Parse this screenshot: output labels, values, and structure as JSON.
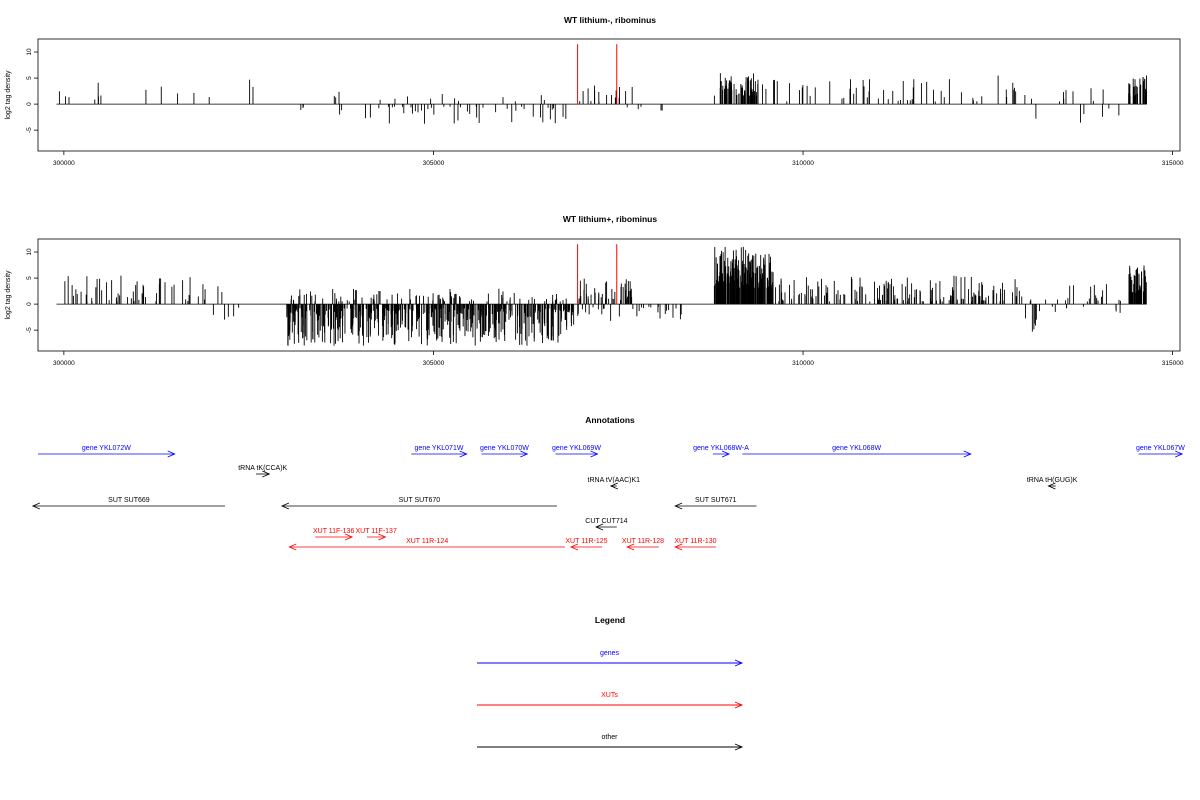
{
  "chart_data": [
    {
      "type": "bar",
      "title": "WT lithium-, ribominus",
      "xlabel": "",
      "ylabel": "log2 tag density",
      "xlim": [
        299650,
        315100
      ],
      "ylim": [
        -9,
        12.5
      ],
      "xticks": [
        300000,
        305000,
        310000,
        315000
      ],
      "yticks": [
        -5,
        0,
        5,
        10
      ],
      "grid": false,
      "seed": 1,
      "highlight_bars": [
        {
          "x": 306950,
          "y": 11.5,
          "color": "#ff0000"
        },
        {
          "x": 307480,
          "y": 11.5,
          "color": "#ff0000"
        }
      ],
      "signal_regions": [
        {
          "x0": 299900,
          "x1": 302300,
          "density": 0.012,
          "min": 0.8,
          "max": 4.2,
          "sign": 1
        },
        {
          "x0": 302500,
          "x1": 302600,
          "density": 0.05,
          "min": 2.5,
          "max": 6.3,
          "sign": 1
        },
        {
          "x0": 303200,
          "x1": 306800,
          "density": 0.035,
          "min": 0.5,
          "max": 3.8,
          "sign": -1
        },
        {
          "x0": 303600,
          "x1": 306600,
          "density": 0.012,
          "min": 0.5,
          "max": 2.5,
          "sign": 1
        },
        {
          "x0": 306950,
          "x1": 307700,
          "density": 0.06,
          "min": 0.5,
          "max": 4.5,
          "sign": 1
        },
        {
          "x0": 307000,
          "x1": 308300,
          "density": 0.01,
          "min": 0.5,
          "max": 3.5,
          "sign": -1
        },
        {
          "x0": 308800,
          "x1": 309400,
          "density": 0.3,
          "min": 1.5,
          "max": 6,
          "sign": 1
        },
        {
          "x0": 309400,
          "x1": 312900,
          "density": 0.04,
          "min": 0.5,
          "max": 4.8,
          "sign": 1
        },
        {
          "x0": 312600,
          "x1": 312650,
          "density": 0.05,
          "min": 3,
          "max": 6,
          "sign": 1
        },
        {
          "x0": 313000,
          "x1": 314300,
          "density": 0.02,
          "min": 0.5,
          "max": 3.5,
          "sign": 1
        },
        {
          "x0": 313000,
          "x1": 314300,
          "density": 0.012,
          "min": 0.5,
          "max": 3.8,
          "sign": -1
        },
        {
          "x0": 314400,
          "x1": 314650,
          "density": 0.4,
          "min": 1.5,
          "max": 5.5,
          "sign": 1
        }
      ]
    },
    {
      "type": "bar",
      "title": "WT lithium+, ribominus",
      "xlabel": "",
      "ylabel": "log2 tag density",
      "xlim": [
        299650,
        315100
      ],
      "ylim": [
        -9,
        12.5
      ],
      "xticks": [
        300000,
        305000,
        310000,
        315000
      ],
      "yticks": [
        -5,
        0,
        5,
        10
      ],
      "grid": false,
      "seed": 7,
      "highlight_bars": [
        {
          "x": 306950,
          "y": 11.5,
          "color": "#ff0000"
        },
        {
          "x": 307480,
          "y": 11.5,
          "color": "#ff0000"
        }
      ],
      "signal_regions": [
        {
          "x0": 299900,
          "x1": 302200,
          "density": 0.06,
          "min": 0.5,
          "max": 5.5,
          "sign": 1
        },
        {
          "x0": 302000,
          "x1": 302400,
          "density": 0.03,
          "min": 0.5,
          "max": 3,
          "sign": -1
        },
        {
          "x0": 303000,
          "x1": 306900,
          "density": 0.3,
          "min": 0.8,
          "max": 8,
          "sign": -1
        },
        {
          "x0": 303000,
          "x1": 306900,
          "density": 0.06,
          "min": 0.5,
          "max": 3,
          "sign": 1
        },
        {
          "x0": 306950,
          "x1": 307700,
          "density": 0.15,
          "min": 0.8,
          "max": 5,
          "sign": 1
        },
        {
          "x0": 306950,
          "x1": 308400,
          "density": 0.05,
          "min": 0.5,
          "max": 4,
          "sign": -1
        },
        {
          "x0": 308800,
          "x1": 309600,
          "density": 0.6,
          "min": 3,
          "max": 11,
          "sign": 1
        },
        {
          "x0": 309600,
          "x1": 312900,
          "density": 0.12,
          "min": 0.5,
          "max": 5.5,
          "sign": 1
        },
        {
          "x0": 312900,
          "x1": 314300,
          "density": 0.04,
          "min": 0.5,
          "max": 4,
          "sign": 1
        },
        {
          "x0": 313100,
          "x1": 313150,
          "density": 0.2,
          "min": 3,
          "max": 6.5,
          "sign": -1
        },
        {
          "x0": 312900,
          "x1": 314300,
          "density": 0.02,
          "min": 0.5,
          "max": 3,
          "sign": -1
        },
        {
          "x0": 314400,
          "x1": 314650,
          "density": 0.5,
          "min": 2,
          "max": 7.5,
          "sign": 1
        }
      ]
    }
  ],
  "annotations": {
    "title": "Annotations",
    "features": [
      {
        "label": "gene YKL072W",
        "start": 299650,
        "end": 301500,
        "row": 0,
        "color": "#0000ff"
      },
      {
        "label": "gene YKL071W",
        "start": 304700,
        "end": 305450,
        "row": 0,
        "color": "#0000ff"
      },
      {
        "label": "gene YKL070W",
        "start": 305650,
        "end": 306270,
        "row": 0,
        "color": "#0000ff"
      },
      {
        "label": "gene YKL069W",
        "start": 306650,
        "end": 307220,
        "row": 0,
        "color": "#0000ff"
      },
      {
        "label": "gene YKL068W-A",
        "start": 308780,
        "end": 309000,
        "row": 0,
        "color": "#0000ff"
      },
      {
        "label": "gene YKL068W",
        "start": 309180,
        "end": 312270,
        "row": 0,
        "color": "#0000ff"
      },
      {
        "label": "gene YKL067W",
        "start": 314540,
        "end": 315130,
        "row": 0,
        "color": "#0000ff"
      },
      {
        "label": "tRNA tK(CCA)K",
        "start": 302600,
        "end": 302780,
        "row": 1,
        "color": "#000000"
      },
      {
        "label": "tRNA tV(AAC)K1",
        "start": 307480,
        "end": 307400,
        "row": 2,
        "color": "#000000"
      },
      {
        "label": "tRNA tH(GUG)K",
        "start": 313420,
        "end": 313320,
        "row": 2,
        "color": "#000000"
      },
      {
        "label": "SUT SUT669",
        "start": 302180,
        "end": 299580,
        "row": 3,
        "color": "#000000"
      },
      {
        "label": "SUT SUT670",
        "start": 306670,
        "end": 302950,
        "row": 3,
        "color": "#000000"
      },
      {
        "label": "SUT SUT671",
        "start": 309370,
        "end": 308270,
        "row": 3,
        "color": "#000000"
      },
      {
        "label": "CUT CUT714",
        "start": 307480,
        "end": 307200,
        "row": 4,
        "color": "#000000"
      },
      {
        "label": "XUT 11F-136",
        "start": 303400,
        "end": 303900,
        "row": 5,
        "color": "#ff0000"
      },
      {
        "label": "XUT 11F-137",
        "start": 304100,
        "end": 304350,
        "row": 5,
        "color": "#ff0000"
      },
      {
        "label": "XUT 11R-124",
        "start": 306780,
        "end": 303050,
        "row": 6,
        "color": "#ff0000"
      },
      {
        "label": "XUT 11R-125",
        "start": 307280,
        "end": 306860,
        "row": 6,
        "color": "#ff0000"
      },
      {
        "label": "XUT 11R-128",
        "start": 308050,
        "end": 307620,
        "row": 6,
        "color": "#ff0000"
      },
      {
        "label": "XUT 11R-130",
        "start": 308820,
        "end": 308270,
        "row": 6,
        "color": "#ff0000"
      }
    ]
  },
  "legend": {
    "title": "Legend",
    "items": [
      {
        "label": "genes",
        "color": "#0000ff"
      },
      {
        "label": "XUTs",
        "color": "#ff0000"
      },
      {
        "label": "other",
        "color": "#000000"
      }
    ]
  }
}
